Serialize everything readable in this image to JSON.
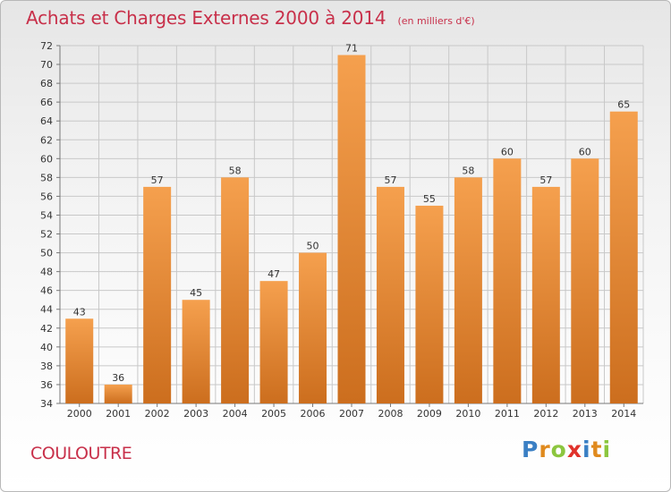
{
  "title": "Achats et Charges Externes 2000 à 2014",
  "subtitle": "(en milliers d'€)",
  "place": "COULOUTRE",
  "brand": {
    "text": "Proxiti",
    "letters": [
      {
        "ch": "P",
        "color": "#3a7fc4"
      },
      {
        "ch": "r",
        "color": "#e08a1e"
      },
      {
        "ch": "o",
        "color": "#8cc63f"
      },
      {
        "ch": "x",
        "color": "#e0322b"
      },
      {
        "ch": "i",
        "color": "#3a7fc4"
      },
      {
        "ch": "t",
        "color": "#e08a1e"
      },
      {
        "ch": "i",
        "color": "#8cc63f"
      }
    ]
  },
  "colors": {
    "title": "#c8304a",
    "bar_top": "#f5a04e",
    "bar_bottom": "#cc6e1e",
    "grid": "#c8c8c8"
  },
  "chart_data": {
    "type": "bar",
    "title": "Achats et Charges Externes 2000 à 2014",
    "subtitle": "(en milliers d'€)",
    "categories": [
      "2000",
      "2001",
      "2002",
      "2003",
      "2004",
      "2005",
      "2006",
      "2007",
      "2008",
      "2009",
      "2010",
      "2011",
      "2012",
      "2013",
      "2014"
    ],
    "values": [
      43,
      36,
      57,
      45,
      58,
      47,
      50,
      71,
      57,
      55,
      58,
      60,
      57,
      60,
      65
    ],
    "ylim": [
      34,
      72
    ],
    "yticks": [
      34,
      36,
      38,
      40,
      42,
      44,
      46,
      48,
      50,
      52,
      54,
      56,
      58,
      60,
      62,
      64,
      66,
      68,
      70,
      72
    ],
    "xlabel": "",
    "ylabel": "",
    "grid": true,
    "data_labels": true
  }
}
